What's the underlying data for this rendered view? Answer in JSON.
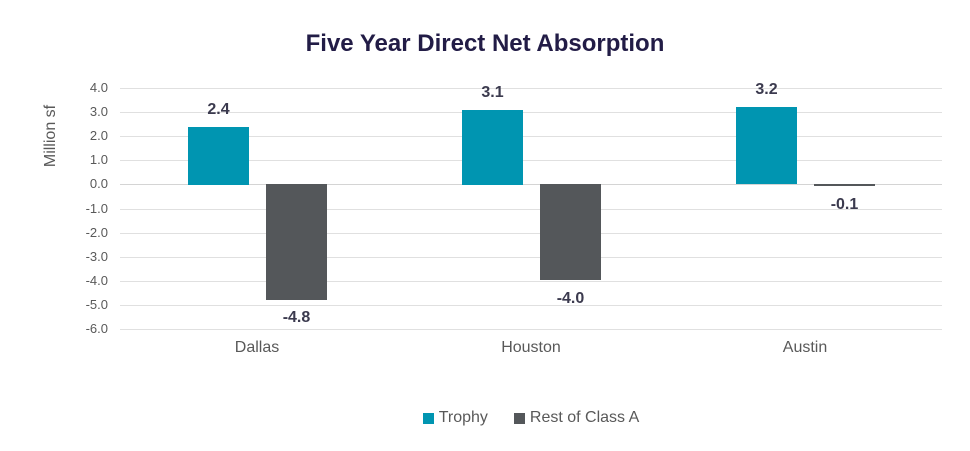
{
  "chart_data": {
    "type": "bar",
    "title": "Five Year Direct Net Absorption",
    "ylabel": "Million sf",
    "xlabel": "",
    "categories": [
      "Dallas",
      "Houston",
      "Austin"
    ],
    "series": [
      {
        "name": "Trophy",
        "color": "#0095B1",
        "values": [
          2.4,
          3.1,
          3.2
        ],
        "labels": [
          "2.4",
          "3.1",
          "3.2"
        ]
      },
      {
        "name": "Rest of Class A",
        "color": "#54575A",
        "values": [
          -4.8,
          -4.0,
          -0.1
        ],
        "labels": [
          "-4.8",
          "-4.0",
          "-0.1"
        ]
      }
    ],
    "ylim": [
      -6.0,
      4.0
    ],
    "ytick_labels": [
      "4.0",
      "3.0",
      "2.0",
      "1.0",
      "0.0",
      "-1.0",
      "-2.0",
      "-3.0",
      "-4.0",
      "-5.0",
      "-6.0"
    ],
    "grid": true,
    "legend_position": "bottom"
  },
  "colors": {
    "title_text": "#221C46",
    "data_label_text": "#3B3A4E",
    "axis_text": "#595959",
    "gridline": "#E0E0E0",
    "zero_line": "#D4D4D4",
    "background": "#FFFFFF"
  }
}
